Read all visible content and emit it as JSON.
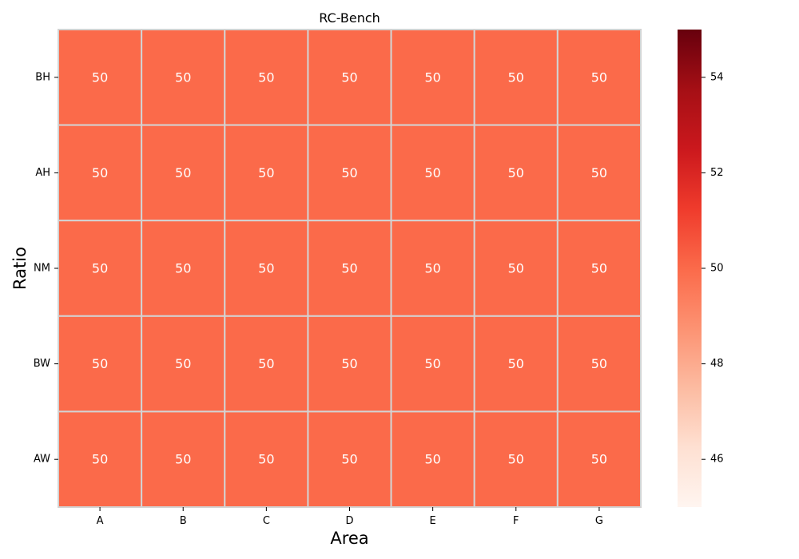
{
  "chart_data": {
    "type": "heatmap",
    "title": "RC-Bench",
    "xlabel": "Area",
    "ylabel": "Ratio",
    "x_categories": [
      "A",
      "B",
      "C",
      "D",
      "E",
      "F",
      "G"
    ],
    "y_categories": [
      "BH",
      "AH",
      "NM",
      "BW",
      "AW"
    ],
    "values": [
      [
        50,
        50,
        50,
        50,
        50,
        50,
        50
      ],
      [
        50,
        50,
        50,
        50,
        50,
        50,
        50
      ],
      [
        50,
        50,
        50,
        50,
        50,
        50,
        50
      ],
      [
        50,
        50,
        50,
        50,
        50,
        50,
        50
      ],
      [
        50,
        50,
        50,
        50,
        50,
        50,
        50
      ]
    ],
    "annotate": true,
    "colormap": "Reds",
    "vmin": 45,
    "vmax": 55,
    "colorbar": {
      "ticks": [
        46,
        48,
        50,
        52,
        54
      ],
      "tick_labels": [
        "46",
        "48",
        "50",
        "52",
        "54"
      ]
    },
    "cell_border_color": "#d3d3d3",
    "annotation_color": "#ffffff"
  }
}
